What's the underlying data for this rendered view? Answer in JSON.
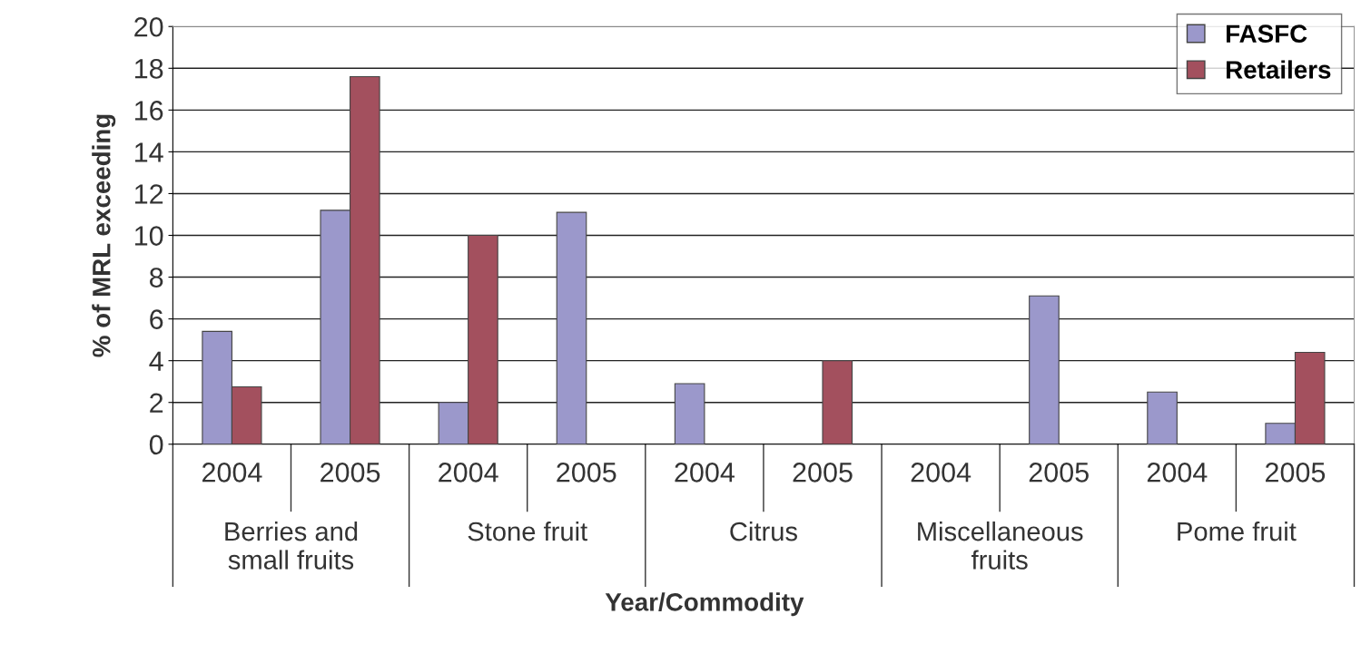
{
  "chart_data": {
    "type": "bar",
    "xlabel": "Year/Commodity",
    "ylabel": "% of MRL exceeding",
    "categories": [
      "2004",
      "2005",
      "2004",
      "2005",
      "2004",
      "2005",
      "2004",
      "2005",
      "2004",
      "2005"
    ],
    "series": [
      {
        "name": "FASFC",
        "color": "#9b98cb",
        "values": [
          5.4,
          11.2,
          2.0,
          11.1,
          2.9,
          null,
          null,
          7.1,
          2.5,
          1.0
        ]
      },
      {
        "name": "Retailers",
        "color": "#a3505e",
        "values": [
          2.75,
          17.6,
          10.0,
          null,
          null,
          4.0,
          null,
          null,
          null,
          4.4
        ]
      }
    ],
    "annotations": [
      "Berries and\nsmall fruits",
      "Stone fruit",
      "Citrus",
      "Miscellaneous\nfruits",
      "Pome fruit"
    ],
    "ylim": [
      0,
      20
    ],
    "yticks": [
      0,
      2,
      4,
      6,
      8,
      10,
      12,
      14,
      16,
      18,
      20
    ],
    "grid": "y",
    "legend": "top right"
  }
}
